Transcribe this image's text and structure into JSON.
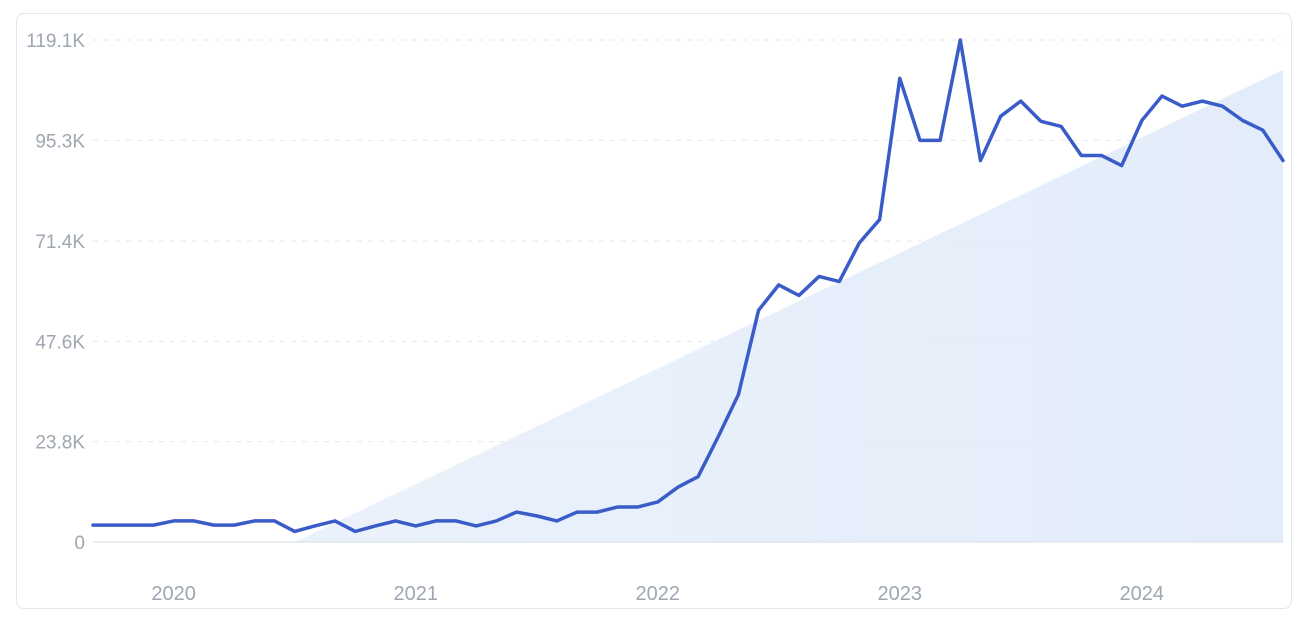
{
  "chart_data": {
    "type": "line",
    "y_ticks": [
      "0",
      "23.8K",
      "47.6K",
      "71.4K",
      "95.3K",
      "119.1K"
    ],
    "y_tick_values": [
      0,
      23800,
      47600,
      71400,
      95300,
      119100
    ],
    "ylim": [
      0,
      119100
    ],
    "x_ticks": [
      "2020",
      "2021",
      "2022",
      "2023",
      "2024"
    ],
    "xlim": [
      "2019-09",
      "2024-08"
    ],
    "grid": true,
    "line_color": "#3a5cc9",
    "trend_fill_color": "#e3edfa",
    "series": [
      {
        "x": [
          "2019-09",
          "2019-10",
          "2019-11",
          "2019-12",
          "2020-01",
          "2020-02",
          "2020-03",
          "2020-04",
          "2020-05",
          "2020-06",
          "2020-07",
          "2020-08",
          "2020-09",
          "2020-10",
          "2020-11",
          "2020-12",
          "2021-01",
          "2021-02",
          "2021-03",
          "2021-04",
          "2021-05",
          "2021-06",
          "2021-07",
          "2021-08",
          "2021-09",
          "2021-10",
          "2021-11",
          "2021-12",
          "2022-01",
          "2022-02",
          "2022-03",
          "2022-04",
          "2022-05",
          "2022-06",
          "2022-07",
          "2022-08",
          "2022-09",
          "2022-10",
          "2022-11",
          "2022-12",
          "2023-01",
          "2023-02",
          "2023-03",
          "2023-04",
          "2023-05",
          "2023-06",
          "2023-07",
          "2023-08",
          "2023-09",
          "2023-10",
          "2023-11",
          "2023-12",
          "2024-01",
          "2024-02",
          "2024-03",
          "2024-04",
          "2024-05",
          "2024-06",
          "2024-07",
          "2024-08"
        ],
        "values": [
          4000,
          4000,
          4000,
          4000,
          5000,
          5000,
          4000,
          4000,
          5000,
          5000,
          2500,
          3800,
          5000,
          2500,
          3800,
          5000,
          3800,
          5000,
          5000,
          3800,
          5000,
          7100,
          6200,
          5000,
          7100,
          7100,
          8300,
          8300,
          9500,
          13000,
          15500,
          25000,
          35000,
          55000,
          61000,
          58500,
          63000,
          61800,
          71000,
          76500,
          110000,
          95300,
          95300,
          119100,
          90500,
          101000,
          104600,
          99800,
          98600,
          91700,
          91700,
          89300,
          100000,
          105800,
          103400,
          104600,
          103400,
          100000,
          97700,
          90500
        ]
      }
    ],
    "trend": {
      "x": [
        "2020-07",
        "2024-08"
      ],
      "values": [
        0,
        112000
      ]
    }
  }
}
